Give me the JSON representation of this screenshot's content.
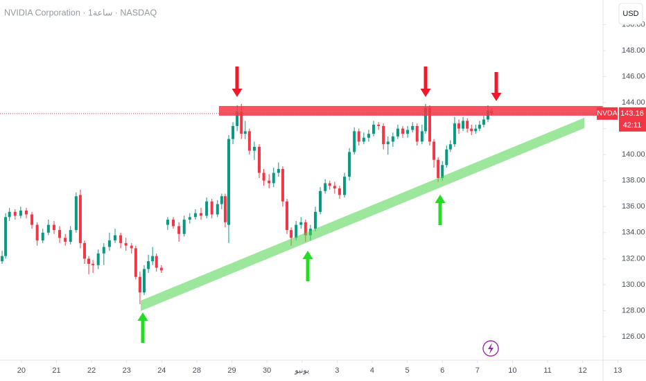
{
  "chart_data": {
    "type": "candlestick",
    "title": "NVIDIA Corporation · 1ساعة · NASDAQ",
    "currency": "USD",
    "symbol": "NVDA",
    "last_price": 143.16,
    "last_price_label": "143.16",
    "countdown": "42:11",
    "up_color": "#089981",
    "down_color": "#f23645",
    "last_price_color": "#f23645",
    "xlim": [
      -0.61,
      16.58
    ],
    "ylim": [
      124.19,
      151.89
    ],
    "xticks": [
      {
        "value": 0,
        "label": "20"
      },
      {
        "value": 1,
        "label": "21"
      },
      {
        "value": 2,
        "label": "22"
      },
      {
        "value": 3,
        "label": "23"
      },
      {
        "value": 4,
        "label": "24"
      },
      {
        "value": 5,
        "label": "28"
      },
      {
        "value": 6,
        "label": "29"
      },
      {
        "value": 7,
        "label": "30"
      },
      {
        "value": 8,
        "label": "يونيو"
      },
      {
        "value": 9,
        "label": "3"
      },
      {
        "value": 10,
        "label": "4"
      },
      {
        "value": 11,
        "label": "5"
      },
      {
        "value": 12,
        "label": "6"
      },
      {
        "value": 13,
        "label": "7"
      },
      {
        "value": 14,
        "label": "10"
      },
      {
        "value": 15,
        "label": "11"
      },
      {
        "value": 16,
        "label": "12"
      },
      {
        "value": 17,
        "label": "13"
      }
    ],
    "yticks": [
      {
        "value": 126,
        "label": "126.00"
      },
      {
        "value": 128,
        "label": "128.00"
      },
      {
        "value": 130,
        "label": "130.00"
      },
      {
        "value": 132,
        "label": "132.00"
      },
      {
        "value": 134,
        "label": "134.00"
      },
      {
        "value": 136,
        "label": "136.00"
      },
      {
        "value": 138,
        "label": "138.00"
      },
      {
        "value": 140,
        "label": "140.00"
      },
      {
        "value": 142,
        "label": "142.00"
      },
      {
        "value": 144,
        "label": "144.00"
      },
      {
        "value": 146,
        "label": "146.00"
      },
      {
        "value": 148,
        "label": "148.00"
      },
      {
        "value": 150,
        "label": "150.00"
      }
    ],
    "x": [
      -0.55,
      -0.45,
      -0.34,
      -0.18,
      -0.02,
      0.14,
      0.3,
      0.45,
      0.61,
      0.77,
      0.93,
      1.09,
      1.25,
      1.4,
      1.56,
      1.68,
      1.8,
      1.92,
      2.04,
      2.19,
      2.35,
      2.51,
      2.67,
      2.83,
      2.98,
      3.14,
      3.26,
      3.38,
      3.5,
      3.62,
      3.74,
      3.85,
      3.99,
      4.17,
      4.33,
      4.49,
      4.64,
      4.8,
      4.96,
      5.12,
      5.28,
      5.43,
      5.59,
      5.71,
      5.81,
      5.91,
      6.03,
      6.15,
      6.27,
      6.38,
      6.5,
      6.64,
      6.78,
      6.91,
      7.06,
      7.19,
      7.33,
      7.45,
      7.57,
      7.69,
      7.83,
      7.97,
      8.1,
      8.24,
      8.38,
      8.52,
      8.66,
      8.79,
      8.93,
      9.07,
      9.21,
      9.35,
      9.49,
      9.62,
      9.76,
      9.9,
      10.04,
      10.18,
      10.32,
      10.45,
      10.59,
      10.73,
      10.87,
      11.01,
      11.15,
      11.28,
      11.42,
      11.52,
      11.64,
      11.76,
      11.88,
      12.0,
      12.12,
      12.23,
      12.35,
      12.47,
      12.59,
      12.71,
      12.83,
      12.95,
      13.06,
      13.18,
      13.3,
      13.4
    ],
    "ohlc": [
      [
        131.8,
        132.6,
        131.6,
        132.2
      ],
      [
        132.2,
        135.5,
        132.0,
        135.2
      ],
      [
        135.2,
        135.9,
        134.9,
        135.6
      ],
      [
        135.6,
        135.8,
        135.0,
        135.3
      ],
      [
        135.3,
        136.0,
        135.1,
        135.7
      ],
      [
        135.7,
        135.9,
        135.1,
        135.4
      ],
      [
        135.4,
        135.6,
        134.3,
        134.6
      ],
      [
        134.6,
        134.8,
        133.0,
        133.4
      ],
      [
        133.4,
        134.3,
        133.2,
        134.0
      ],
      [
        134.0,
        135.0,
        133.8,
        134.6
      ],
      [
        134.6,
        134.9,
        133.9,
        134.2
      ],
      [
        134.2,
        134.5,
        133.2,
        133.6
      ],
      [
        133.6,
        133.9,
        133.0,
        133.3
      ],
      [
        133.3,
        134.5,
        133.1,
        134.2
      ],
      [
        134.2,
        137.1,
        134.0,
        136.8
      ],
      [
        136.9,
        137.3,
        132.8,
        133.2
      ],
      [
        133.2,
        133.4,
        131.6,
        132.0
      ],
      [
        132.0,
        132.2,
        130.8,
        131.6
      ],
      [
        131.6,
        131.9,
        130.9,
        131.5
      ],
      [
        131.5,
        132.7,
        131.2,
        132.4
      ],
      [
        132.4,
        133.2,
        131.5,
        132.9
      ],
      [
        132.9,
        134.0,
        132.6,
        133.4
      ],
      [
        133.4,
        134.3,
        133.2,
        133.8
      ],
      [
        133.8,
        134.0,
        132.8,
        133.2
      ],
      [
        133.2,
        133.6,
        132.6,
        133.0
      ],
      [
        133.0,
        133.2,
        132.4,
        132.8
      ],
      [
        132.8,
        133.0,
        130.4,
        130.6
      ],
      [
        130.6,
        131.0,
        128.5,
        129.4
      ],
      [
        129.4,
        131.5,
        129.2,
        131.2
      ],
      [
        131.2,
        132.3,
        130.9,
        131.8
      ],
      [
        131.8,
        132.9,
        131.5,
        132.2
      ],
      [
        132.2,
        132.4,
        131.0,
        131.3
      ],
      [
        131.3,
        131.5,
        130.9,
        131.1
      ],
      [
        134.6,
        135.2,
        134.2,
        135.0
      ],
      [
        135.0,
        135.2,
        134.3,
        134.5
      ],
      [
        134.5,
        134.8,
        133.3,
        133.9
      ],
      [
        133.9,
        135.3,
        133.7,
        135.0
      ],
      [
        135.0,
        135.5,
        134.7,
        135.2
      ],
      [
        135.2,
        135.8,
        135.0,
        135.5
      ],
      [
        135.5,
        135.9,
        135.0,
        135.3
      ],
      [
        135.3,
        136.7,
        135.1,
        136.4
      ],
      [
        136.4,
        136.6,
        135.1,
        135.4
      ],
      [
        135.4,
        136.5,
        135.2,
        136.2
      ],
      [
        136.2,
        137.0,
        135.8,
        136.8
      ],
      [
        136.8,
        137.0,
        134.4,
        134.8
      ],
      [
        134.6,
        141.5,
        133.2,
        141.2
      ],
      [
        141.2,
        142.5,
        140.8,
        142.2
      ],
      [
        142.2,
        143.8,
        141.8,
        143.3
      ],
      [
        143.3,
        143.9,
        141.2,
        141.6
      ],
      [
        141.6,
        142.6,
        141.2,
        141.8
      ],
      [
        141.8,
        142.0,
        140.0,
        140.3
      ],
      [
        140.3,
        141.0,
        139.6,
        140.6
      ],
      [
        140.6,
        140.8,
        138.2,
        138.6
      ],
      [
        138.6,
        138.9,
        137.6,
        138.0
      ],
      [
        138.0,
        138.5,
        137.4,
        137.8
      ],
      [
        137.8,
        139.0,
        137.5,
        138.6
      ],
      [
        138.6,
        139.4,
        138.3,
        138.9
      ],
      [
        138.9,
        139.1,
        136.0,
        136.4
      ],
      [
        136.4,
        136.6,
        133.9,
        134.2
      ],
      [
        134.2,
        134.4,
        133.0,
        133.6
      ],
      [
        133.6,
        134.9,
        133.4,
        134.6
      ],
      [
        134.6,
        135.2,
        134.3,
        134.8
      ],
      [
        134.8,
        135.0,
        133.3,
        133.8
      ],
      [
        133.8,
        134.6,
        133.4,
        134.3
      ],
      [
        134.3,
        136.0,
        134.1,
        135.6
      ],
      [
        135.6,
        137.5,
        135.4,
        137.2
      ],
      [
        137.2,
        138.1,
        137.0,
        137.8
      ],
      [
        137.8,
        138.0,
        137.3,
        137.6
      ],
      [
        137.6,
        137.9,
        137.0,
        137.4
      ],
      [
        137.4,
        137.6,
        136.6,
        136.9
      ],
      [
        136.9,
        138.6,
        136.7,
        138.3
      ],
      [
        138.3,
        140.5,
        138.0,
        140.2
      ],
      [
        140.2,
        142.1,
        140.0,
        141.8
      ],
      [
        141.8,
        142.0,
        140.7,
        141.0
      ],
      [
        141.0,
        141.7,
        140.8,
        141.3
      ],
      [
        141.3,
        141.9,
        141.0,
        141.6
      ],
      [
        141.6,
        142.6,
        141.4,
        142.3
      ],
      [
        142.3,
        142.5,
        141.9,
        142.2
      ],
      [
        142.2,
        142.4,
        140.4,
        140.8
      ],
      [
        140.8,
        141.4,
        140.0,
        141.0
      ],
      [
        141.0,
        141.7,
        140.6,
        141.4
      ],
      [
        141.4,
        142.3,
        141.2,
        142.0
      ],
      [
        142.0,
        142.2,
        141.3,
        141.6
      ],
      [
        141.6,
        142.2,
        141.3,
        141.9
      ],
      [
        141.9,
        142.5,
        141.7,
        142.2
      ],
      [
        142.2,
        142.4,
        140.7,
        141.0
      ],
      [
        141.0,
        142.3,
        140.8,
        141.8
      ],
      [
        141.8,
        143.9,
        141.6,
        143.6
      ],
      [
        143.6,
        143.8,
        140.7,
        141.0
      ],
      [
        141.0,
        141.2,
        139.0,
        139.6
      ],
      [
        139.6,
        139.8,
        137.9,
        138.2
      ],
      [
        138.2,
        139.5,
        138.0,
        139.2
      ],
      [
        139.2,
        140.7,
        139.0,
        140.4
      ],
      [
        140.4,
        141.1,
        140.2,
        140.8
      ],
      [
        140.8,
        142.9,
        140.6,
        142.4
      ],
      [
        142.4,
        142.7,
        141.6,
        142.0
      ],
      [
        142.0,
        142.9,
        141.8,
        142.6
      ],
      [
        142.6,
        142.8,
        141.7,
        142.0
      ],
      [
        142.0,
        142.3,
        141.5,
        141.8
      ],
      [
        141.8,
        142.3,
        141.6,
        142.0
      ],
      [
        142.0,
        142.6,
        141.8,
        142.3
      ],
      [
        142.3,
        143.0,
        142.1,
        142.7
      ],
      [
        142.7,
        143.8,
        142.5,
        143.4
      ],
      [
        143.4,
        143.6,
        143.0,
        143.16
      ]
    ]
  }
}
